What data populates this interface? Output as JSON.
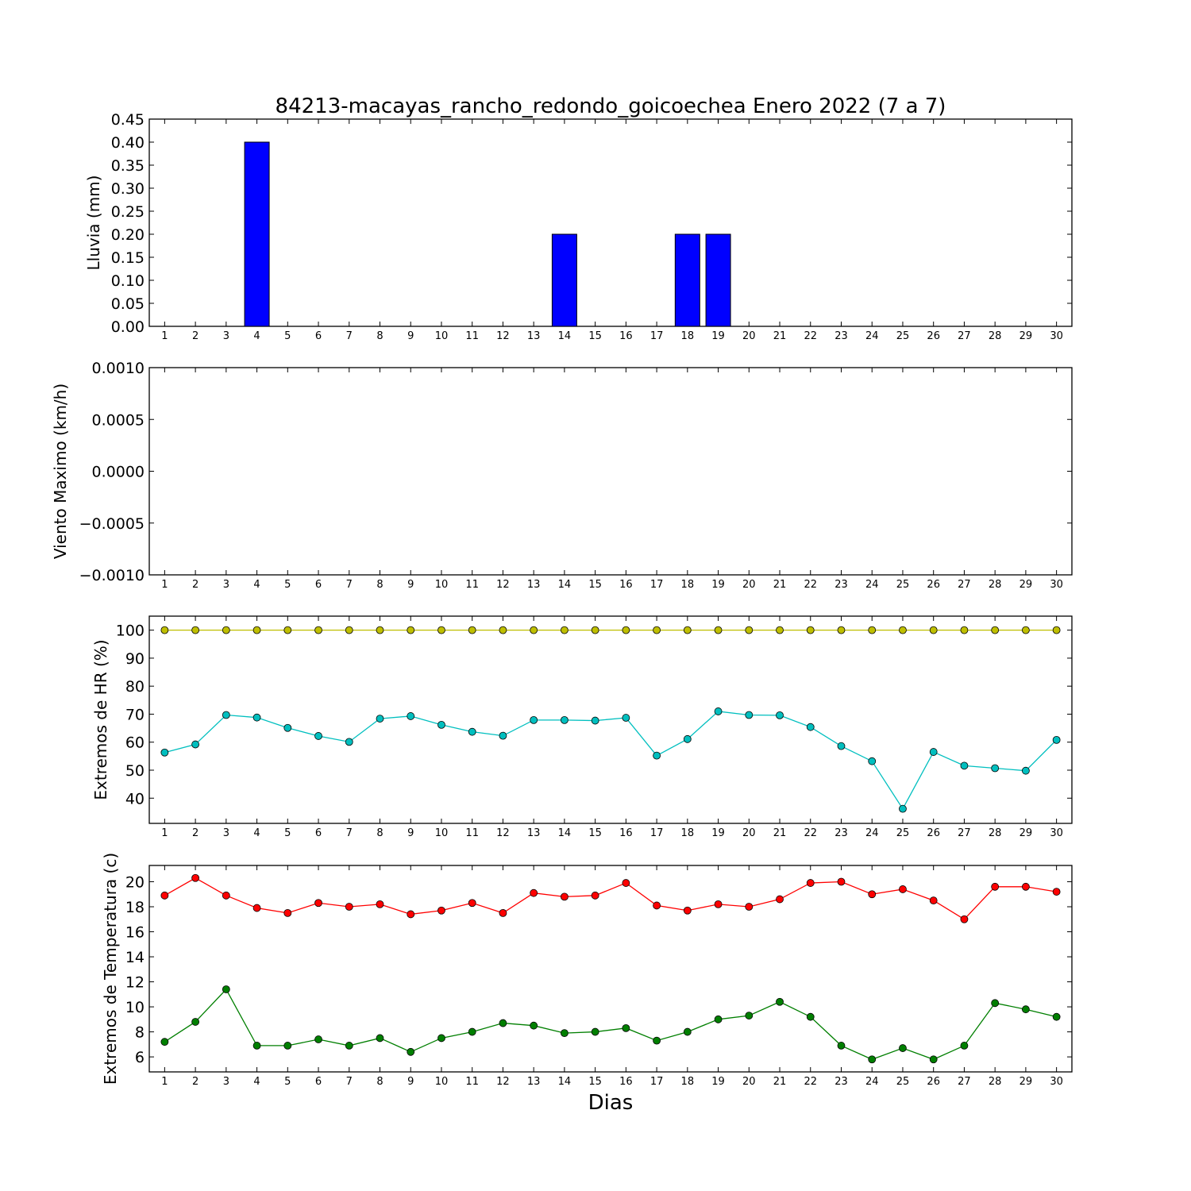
{
  "title": "84213-macayas_rancho_redondo_goicoechea Enero 2022  (7 a 7)",
  "xlabel": "Dias",
  "chart_data": [
    {
      "type": "bar",
      "ylabel": "Lluvia (mm)",
      "ylim": [
        0,
        0.45
      ],
      "yticks": [
        "0.00",
        "0.05",
        "0.10",
        "0.15",
        "0.20",
        "0.25",
        "0.30",
        "0.35",
        "0.40",
        "0.45"
      ],
      "x": [
        1,
        2,
        3,
        4,
        5,
        6,
        7,
        8,
        9,
        10,
        11,
        12,
        13,
        14,
        15,
        16,
        17,
        18,
        19,
        20,
        21,
        22,
        23,
        24,
        25,
        26,
        27,
        28,
        29,
        30
      ],
      "series": [
        {
          "color": "#0000ff",
          "values": [
            0,
            0,
            0,
            0.4,
            0,
            0,
            0,
            0,
            0,
            0,
            0,
            0,
            0,
            0.2,
            0,
            0,
            0,
            0.2,
            0.2,
            0,
            0,
            0,
            0,
            0,
            0,
            0,
            0,
            0,
            0,
            0
          ]
        }
      ]
    },
    {
      "type": "line",
      "ylabel": "Viento Maximo (km/h)",
      "ylim": [
        -0.001,
        0.001
      ],
      "yticks": [
        "−0.0010",
        "−0.0005",
        "0.0000",
        "0.0005",
        "0.0010"
      ],
      "x": [
        1,
        2,
        3,
        4,
        5,
        6,
        7,
        8,
        9,
        10,
        11,
        12,
        13,
        14,
        15,
        16,
        17,
        18,
        19,
        20,
        21,
        22,
        23,
        24,
        25,
        26,
        27,
        28,
        29,
        30
      ],
      "series": []
    },
    {
      "type": "line",
      "ylabel": "Extremos de HR (%)",
      "ylim": [
        31,
        105
      ],
      "yticks": [
        "40",
        "50",
        "60",
        "70",
        "80",
        "90",
        "100"
      ],
      "x": [
        1,
        2,
        3,
        4,
        5,
        6,
        7,
        8,
        9,
        10,
        11,
        12,
        13,
        14,
        15,
        16,
        17,
        18,
        19,
        20,
        21,
        22,
        23,
        24,
        25,
        26,
        27,
        28,
        29,
        30
      ],
      "series": [
        {
          "color": "#bfbf00",
          "values": [
            100,
            100,
            100,
            100,
            100,
            100,
            100,
            100,
            100,
            100,
            100,
            100,
            100,
            100,
            100,
            100,
            100,
            100,
            100,
            100,
            100,
            100,
            100,
            100,
            100,
            100,
            100,
            100,
            100,
            100
          ]
        },
        {
          "color": "#00bfbf",
          "values": [
            56.3,
            59.2,
            69.7,
            68.8,
            65.1,
            62.2,
            60.1,
            68.4,
            69.3,
            66.2,
            63.7,
            62.3,
            67.9,
            67.9,
            67.7,
            68.7,
            55.2,
            61.1,
            71.0,
            69.7,
            69.6,
            65.4,
            58.6,
            53.2,
            36.2,
            56.5,
            51.6,
            50.7,
            49.8,
            60.8
          ]
        }
      ]
    },
    {
      "type": "line",
      "ylabel": "Extremos de Temperatura (c)",
      "ylim": [
        4.8,
        21.3
      ],
      "yticks": [
        "6",
        "8",
        "10",
        "12",
        "14",
        "16",
        "18",
        "20"
      ],
      "x": [
        1,
        2,
        3,
        4,
        5,
        6,
        7,
        8,
        9,
        10,
        11,
        12,
        13,
        14,
        15,
        16,
        17,
        18,
        19,
        20,
        21,
        22,
        23,
        24,
        25,
        26,
        27,
        28,
        29,
        30
      ],
      "series": [
        {
          "color": "#ff0000",
          "values": [
            18.9,
            20.3,
            18.9,
            17.9,
            17.5,
            18.3,
            18.0,
            18.2,
            17.4,
            17.7,
            18.3,
            17.5,
            19.1,
            18.8,
            18.9,
            19.9,
            18.1,
            17.7,
            18.2,
            18.0,
            18.6,
            19.9,
            20.0,
            19.0,
            19.4,
            18.5,
            17.0,
            19.6,
            19.6,
            19.2
          ]
        },
        {
          "color": "#007f00",
          "values": [
            7.2,
            8.8,
            11.4,
            6.9,
            6.9,
            7.4,
            6.9,
            7.5,
            6.4,
            7.5,
            8.0,
            8.7,
            8.5,
            7.9,
            8.0,
            8.3,
            7.3,
            8.0,
            9.0,
            9.3,
            10.4,
            9.2,
            6.9,
            5.8,
            6.7,
            5.8,
            6.9,
            10.3,
            9.8,
            9.2
          ]
        }
      ]
    }
  ]
}
